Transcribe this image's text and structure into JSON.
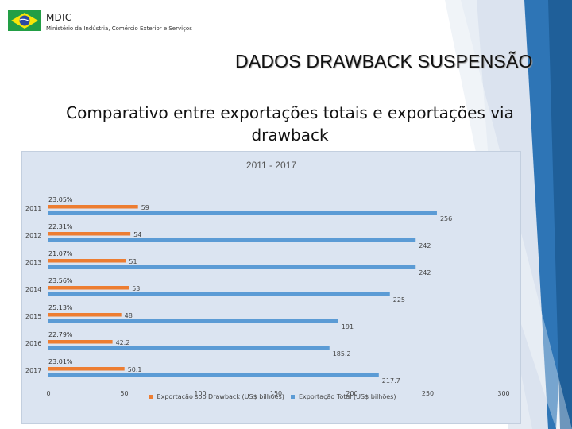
{
  "header": {
    "ministry_abbr": "MDIC",
    "ministry_name": "Ministério da Indústria, Comércio Exterior e Serviços"
  },
  "slide_title": "DADOS DRAWBACK SUSPENSÃO",
  "subtitle_line1": "Comparativo entre exportações totais e exportações via",
  "subtitle_line2": "drawback",
  "colors": {
    "drawback": "#ed7d31",
    "total": "#5b9bd5",
    "panel": "#dbe4f1",
    "accent_blue": "#2e75b6"
  },
  "icons": [
    "brazil-flag-icon"
  ],
  "chart_data": {
    "type": "bar",
    "orientation": "horizontal",
    "title": "2011 - 2017",
    "categories": [
      "2011",
      "2012",
      "2013",
      "2014",
      "2015",
      "2016",
      "2017"
    ],
    "series": [
      {
        "name": "Exportação sob Drawback (US$ bilhões)",
        "values": [
          59,
          54,
          51,
          53,
          48,
          42.2,
          50.1
        ],
        "value_labels": [
          "59",
          "54",
          "51",
          "53",
          "48",
          "42.2",
          "50.1"
        ]
      },
      {
        "name": "Exportação Total (US$ bilhões)",
        "values": [
          256,
          242,
          242,
          225,
          191,
          185.2,
          217.7
        ],
        "value_labels": [
          "256",
          "242",
          "242",
          "225",
          "191",
          "185.2",
          "217.7"
        ]
      }
    ],
    "share_labels": [
      "23.05%",
      "22.31%",
      "21.07%",
      "23.56%",
      "25.13%",
      "22.79%",
      "23.01%"
    ],
    "x_ticks": [
      "0",
      "50",
      "100",
      "150",
      "200",
      "250",
      "300"
    ],
    "xlim": [
      0,
      300
    ],
    "grid": false,
    "legend_position": "bottom"
  }
}
